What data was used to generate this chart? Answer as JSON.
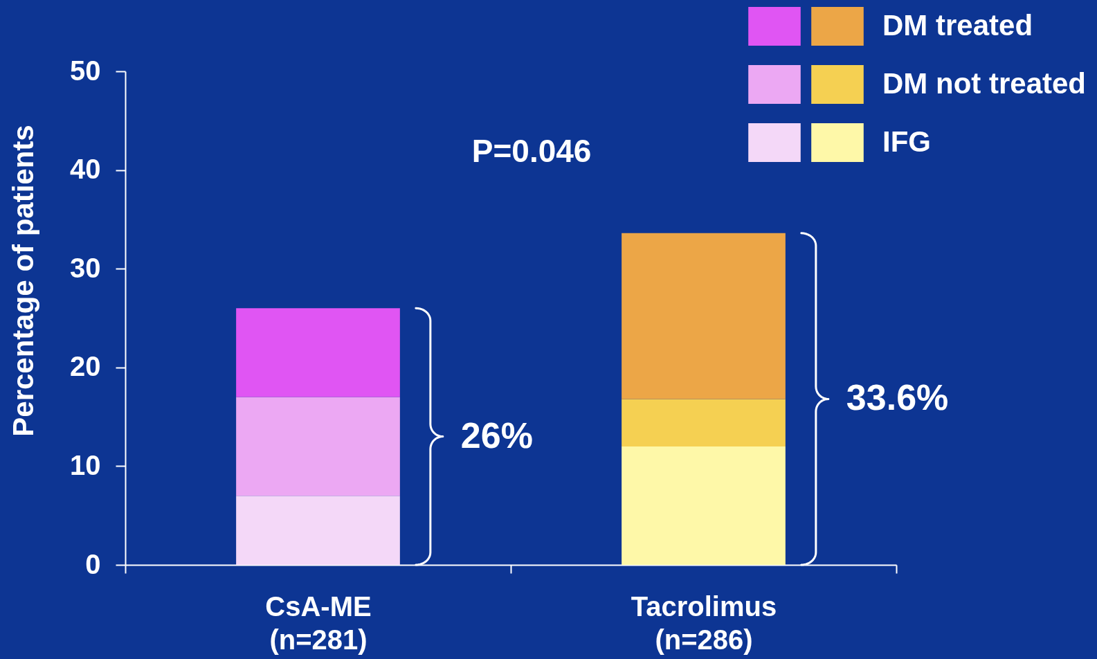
{
  "chart_data": {
    "type": "bar",
    "stacked": true,
    "ylabel": "Percentage of patients",
    "categories": [
      "CsA-ME\n(n=281)",
      "Tacrolimus\n(n=286)"
    ],
    "series": [
      {
        "name": "IFG",
        "colors": [
          "#f4d8f8",
          "#fef8a8"
        ],
        "values": [
          7,
          12
        ]
      },
      {
        "name": "DM not treated",
        "colors": [
          "#eca8f3",
          "#f5d052"
        ],
        "values": [
          10,
          4.8
        ]
      },
      {
        "name": "DM treated",
        "colors": [
          "#e055f3",
          "#eca647"
        ],
        "values": [
          9,
          16.8
        ]
      }
    ],
    "totals": [
      "26%",
      "33.6%"
    ],
    "ylim": [
      0,
      50
    ],
    "yticks": [
      0,
      10,
      20,
      30,
      40,
      50
    ],
    "legend": "top right",
    "annotations": [
      "P=0.046"
    ]
  }
}
